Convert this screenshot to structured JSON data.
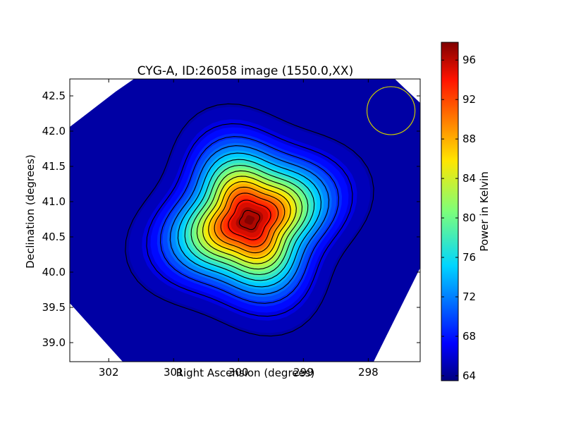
{
  "chart_data": {
    "type": "heatmap",
    "title": "CYG-A, ID:26058 image (1550.0,XX)",
    "xlabel": "Right Ascension (degrees)",
    "ylabel": "Declination (degrees)",
    "xlim": [
      302.6,
      297.2
    ],
    "ylim": [
      38.73,
      42.74
    ],
    "x_inverted": true,
    "x_ticks": [
      302,
      301,
      300,
      299,
      298
    ],
    "y_ticks": [
      39.0,
      39.5,
      40.0,
      40.5,
      41.0,
      41.5,
      42.0,
      42.5
    ],
    "colorbar": {
      "label": "Power in Kelvin",
      "range": [
        63.5,
        97.8
      ],
      "ticks": [
        64,
        68,
        72,
        76,
        80,
        84,
        88,
        92,
        96
      ],
      "colormap": "jet"
    },
    "source": {
      "ra": 299.83,
      "dec": 40.74,
      "peak": 97.8,
      "background": 64
    },
    "contour_levels": [
      65,
      67,
      69.5,
      72,
      74.5,
      77,
      79.5,
      82,
      84.5,
      87,
      89.5,
      92,
      94.5,
      97
    ],
    "beam": {
      "ra": 297.65,
      "dec": 42.29,
      "radius_deg": 0.37,
      "color": "#cccc00"
    }
  }
}
